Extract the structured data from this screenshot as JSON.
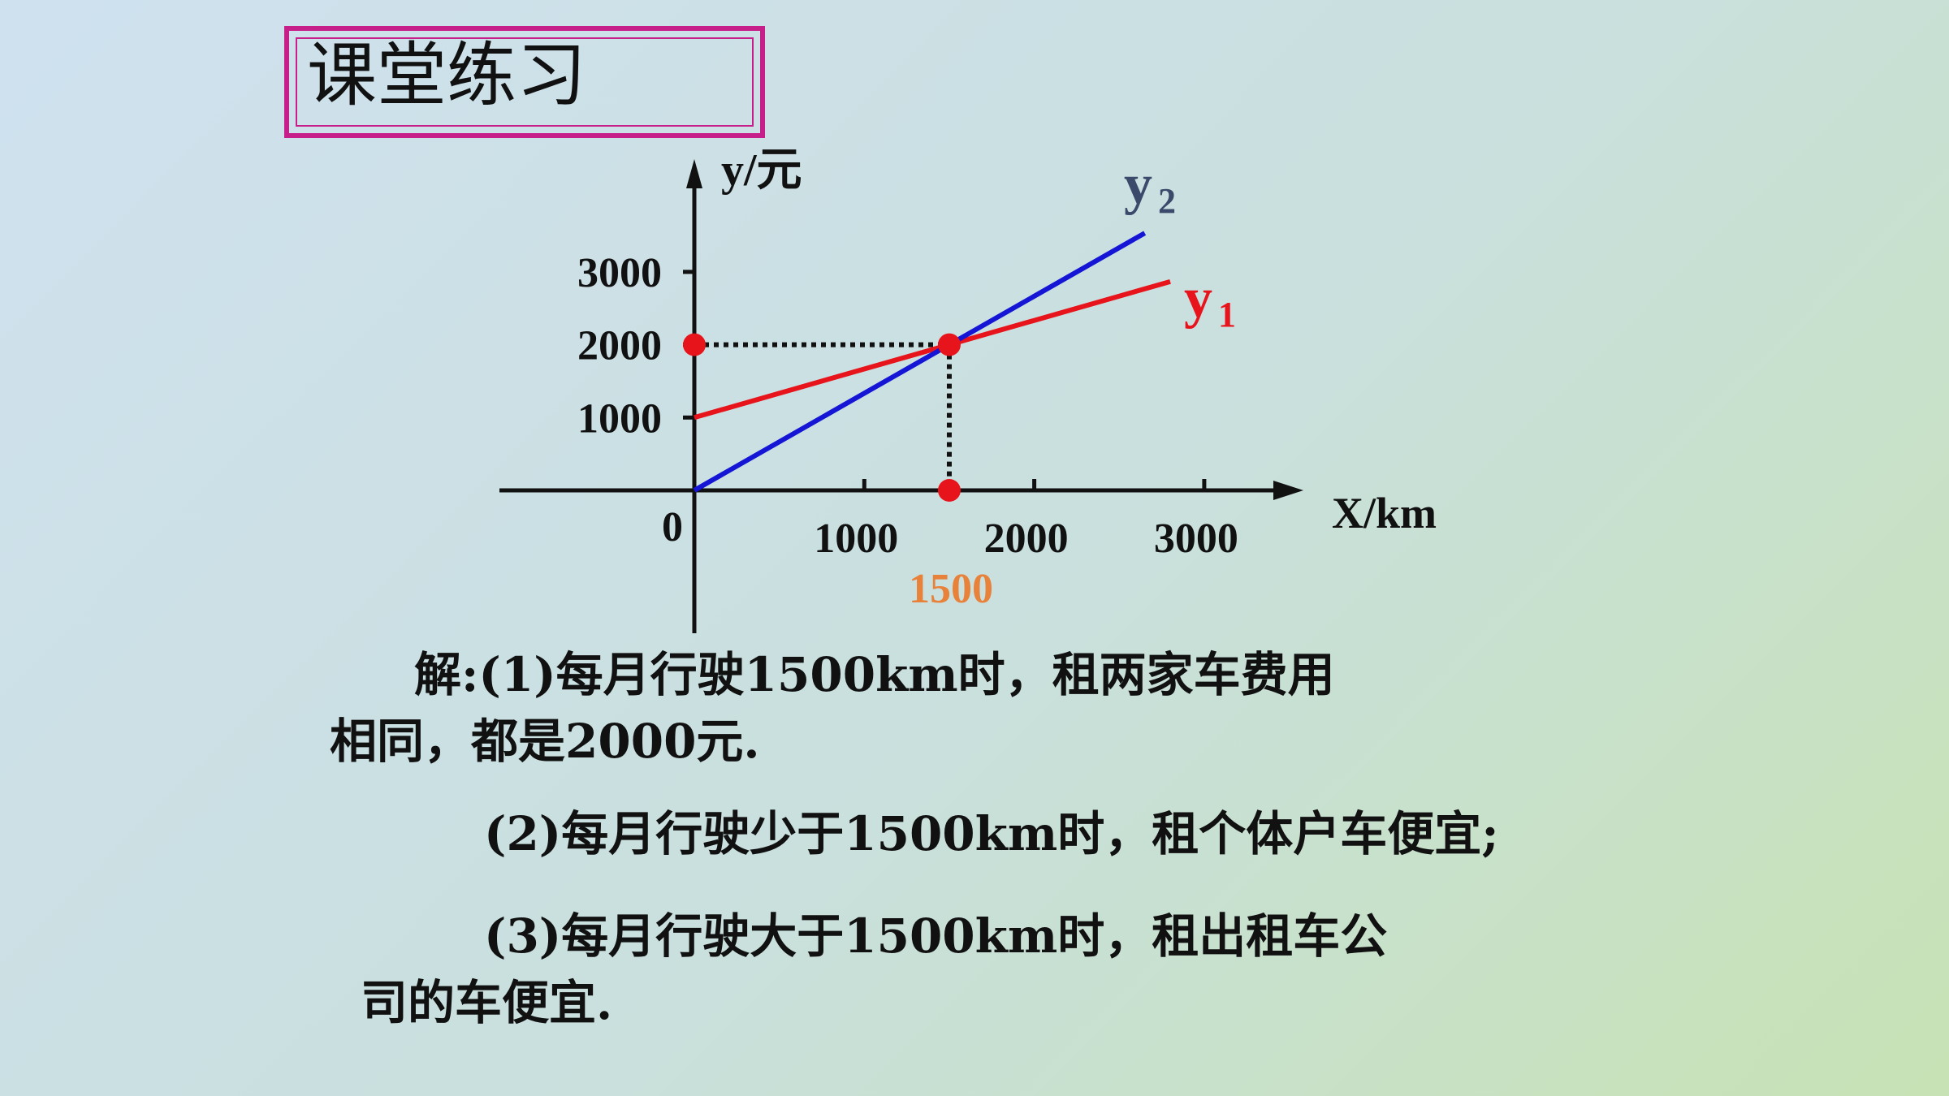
{
  "slide": {
    "title": "课堂练习",
    "solution": {
      "line1": "解:(1)每月行驶1500km时，租两家车费用",
      "line2": "相同，都是2000元.",
      "line3": "(2)每月行驶少于1500km时，租个体户车便宜;",
      "line4": "(3)每月行驶大于1500km时，租出租车公",
      "line5": "司的车便宜."
    }
  },
  "chart_data": {
    "type": "line",
    "xlabel": "X/km",
    "ylabel": "y/元",
    "origin_label": "0",
    "x_ticks": [
      1000,
      2000,
      3000
    ],
    "x_tick_labels": [
      "1000",
      "2000",
      "3000"
    ],
    "y_ticks": [
      1000,
      2000,
      3000
    ],
    "y_tick_labels": [
      "1000",
      "2000",
      "3000"
    ],
    "series": [
      {
        "name": "y",
        "subscript": "1",
        "color": "#e8141c",
        "label_color": "#e8141c",
        "x": [
          0,
          2800
        ],
        "y": [
          1000,
          2867
        ]
      },
      {
        "name": "y",
        "subscript": "2",
        "color": "#1515d6",
        "label_color": "#3b4a6b",
        "x": [
          0,
          2650
        ],
        "y": [
          0,
          3533
        ]
      }
    ],
    "intersection": {
      "x": 1500,
      "y": 2000,
      "x_label": "1500",
      "x_label_color": "#e8823a"
    },
    "marker_color": "#e8141c"
  }
}
